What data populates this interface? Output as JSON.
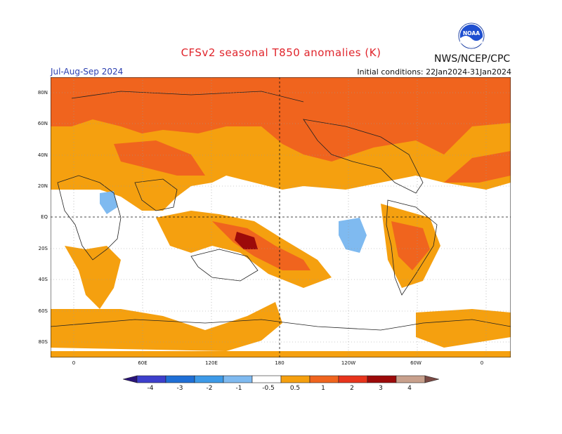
{
  "header": {
    "title": "CFSv2 seasonal T850 anomalies (K)",
    "organization": "NWS/NCEP/CPC",
    "period": "Jul-Aug-Sep 2024",
    "initial_conditions": "Initial conditions: 22Jan2024-31Jan2024"
  },
  "logo": {
    "icon": "noaa-logo-icon",
    "text": "NOAA"
  },
  "axes": {
    "lat_labels": [
      "80N",
      "60N",
      "40N",
      "20N",
      "EQ",
      "20S",
      "40S",
      "60S",
      "80S"
    ],
    "lon_labels": [
      "0",
      "60E",
      "120E",
      "180",
      "120W",
      "60W",
      "0"
    ]
  },
  "colorbar": {
    "levels": [
      "-4",
      "-3",
      "-2",
      "-1",
      "-0.5",
      "0.5",
      "1",
      "2",
      "3",
      "4"
    ],
    "colors": [
      "#2a1478",
      "#3d3fcc",
      "#1f6fd6",
      "#3d9ae8",
      "#7fbaf0",
      "#ffffff",
      "#f5a00f",
      "#f0641e",
      "#e8341c",
      "#9c0a0a",
      "#c8a08c",
      "#7a4a44"
    ]
  }
}
